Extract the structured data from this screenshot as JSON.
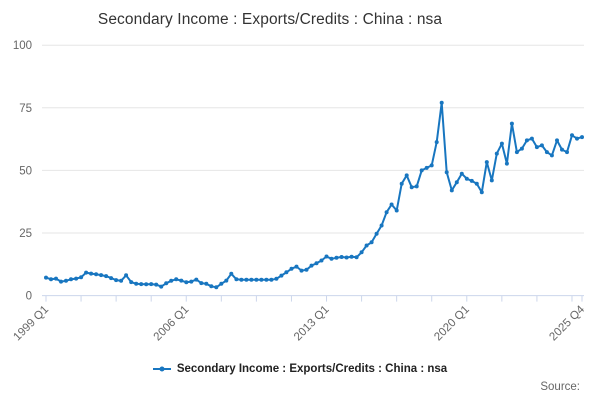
{
  "title": "Secondary Income : Exports/Credits : China : nsa",
  "legend": {
    "label": "Secondary Income : Exports/Credits : China : nsa"
  },
  "source_label": "Source:",
  "colors": {
    "series": "#1876c0",
    "grid": "#e6e6e6",
    "axis": "#ccd6eb",
    "tick_label": "#666666",
    "title_text": "#333333",
    "legend_text": "#222222"
  },
  "chart_data": {
    "type": "line",
    "title": "Secondary Income : Exports/Credits : China : nsa",
    "series_name": "Secondary Income : Exports/Credits : China : nsa",
    "frequency": "quarterly",
    "x_start": "1999 Q1",
    "x_end": "2025 Q4",
    "x_tick_labels": [
      "1999 Q1",
      "2006 Q1",
      "2013 Q1",
      "2020 Q1",
      "2025 Q4"
    ],
    "x_tick_indices": [
      0,
      28,
      56,
      84,
      107
    ],
    "minor_tick_step": 7,
    "y_ticks": [
      0,
      25,
      50,
      75,
      100
    ],
    "ylim": [
      0,
      100
    ],
    "grid": "horizontal",
    "markers": true,
    "legend_position": "bottom",
    "series": [
      {
        "name": "Secondary Income : Exports/Credits : China : nsa",
        "values": [
          7.2,
          6.5,
          6.8,
          5.6,
          5.9,
          6.5,
          6.8,
          7.3,
          9.2,
          8.8,
          8.5,
          8.2,
          7.8,
          7.0,
          6.2,
          5.9,
          8.1,
          5.4,
          4.7,
          4.6,
          4.5,
          4.6,
          4.4,
          3.6,
          4.9,
          5.9,
          6.5,
          6.0,
          5.3,
          5.6,
          6.4,
          5.0,
          4.7,
          3.7,
          3.3,
          4.7,
          6.0,
          8.7,
          6.5,
          6.3,
          6.3,
          6.3,
          6.3,
          6.3,
          6.3,
          6.3,
          6.7,
          8.0,
          9.3,
          10.7,
          11.6,
          10.0,
          10.3,
          12.0,
          12.9,
          14.0,
          15.6,
          14.7,
          15.1,
          15.4,
          15.2,
          15.5,
          15.3,
          17.3,
          20.0,
          21.3,
          24.7,
          28.0,
          33.3,
          36.4,
          34.0,
          44.7,
          48.0,
          43.3,
          43.6,
          50.0,
          51.0,
          52.0,
          61.3,
          77.0,
          49.3,
          42.0,
          45.3,
          48.7,
          46.7,
          45.8,
          44.7,
          41.3,
          53.3,
          46.0,
          56.7,
          60.7,
          52.7,
          68.7,
          57.3,
          58.7,
          62.0,
          62.7,
          59.3,
          60.0,
          57.3,
          56.0,
          62.0,
          58.3,
          57.3,
          64.0,
          62.7,
          63.3
        ]
      }
    ]
  }
}
